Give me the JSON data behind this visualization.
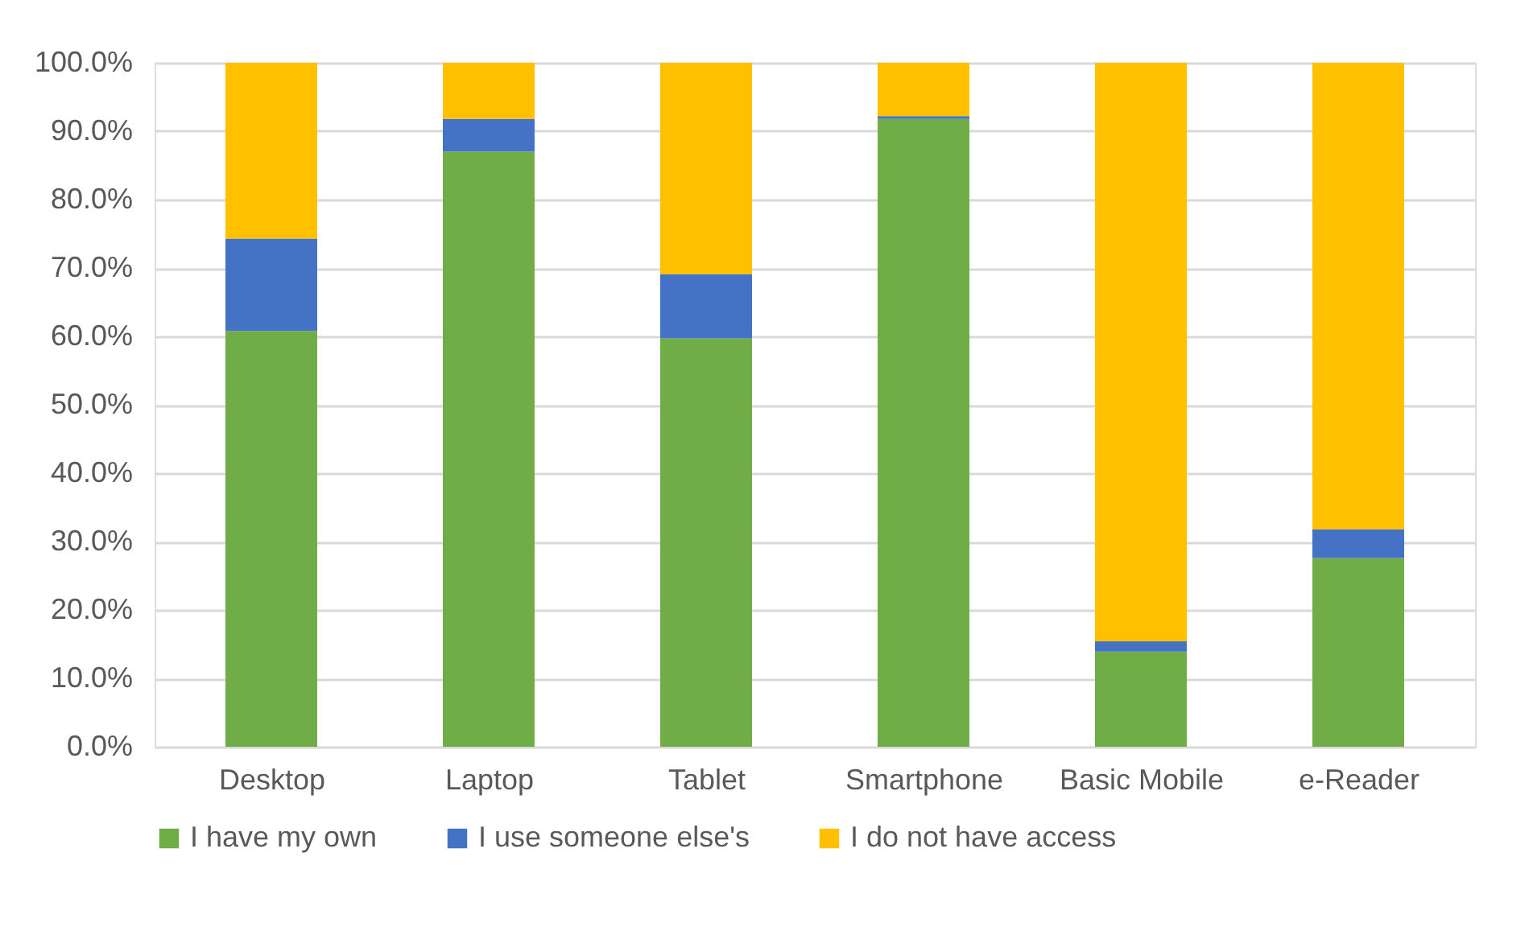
{
  "chart_data": {
    "type": "bar",
    "stacked": true,
    "categories": [
      "Desktop",
      "Laptop",
      "Tablet",
      "Smartphone",
      "Basic Mobile",
      "e-Reader"
    ],
    "series": [
      {
        "name": "I have my own",
        "color": "#70ad47",
        "values": [
          60.8,
          87.0,
          59.7,
          91.8,
          13.9,
          27.6
        ]
      },
      {
        "name": "I use someone else's",
        "color": "#4472c4",
        "values": [
          13.5,
          4.8,
          9.4,
          0.4,
          1.5,
          4.2
        ]
      },
      {
        "name": "I do not have access",
        "color": "#ffc000",
        "values": [
          25.7,
          8.2,
          30.9,
          7.8,
          84.6,
          68.2
        ]
      }
    ],
    "ylim": [
      0,
      100
    ],
    "yticks": [
      {
        "value": 0,
        "label": "0.0%"
      },
      {
        "value": 10,
        "label": "10.0%"
      },
      {
        "value": 20,
        "label": "20.0%"
      },
      {
        "value": 30,
        "label": "30.0%"
      },
      {
        "value": 40,
        "label": "40.0%"
      },
      {
        "value": 50,
        "label": "50.0%"
      },
      {
        "value": 60,
        "label": "60.0%"
      },
      {
        "value": 70,
        "label": "70.0%"
      },
      {
        "value": 80,
        "label": "80.0%"
      },
      {
        "value": 90,
        "label": "90.0%"
      },
      {
        "value": 100,
        "label": "100.0%"
      }
    ],
    "grid": "y",
    "legend": "bottom"
  }
}
